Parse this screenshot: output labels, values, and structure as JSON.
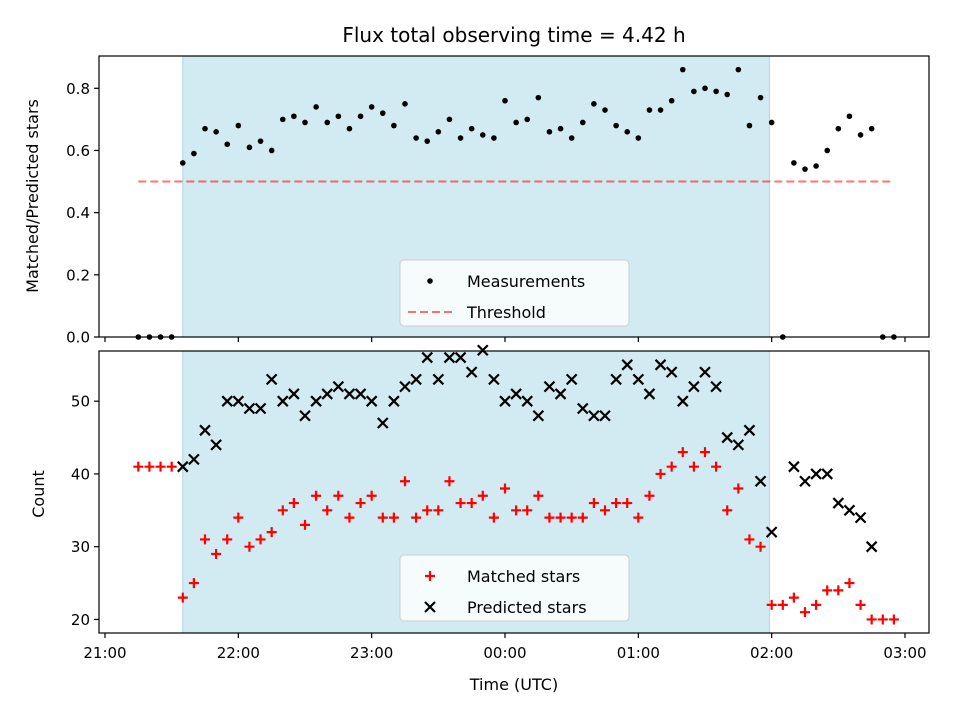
{
  "chart_data": [
    {
      "type": "scatter",
      "title": "Flux total observing time = 4.42 h",
      "xlabel": "",
      "ylabel": "Matched/Predicted stars",
      "xlim": [
        "21:00",
        "03:00"
      ],
      "ylim": [
        0,
        0.9
      ],
      "yticks": [
        0.0,
        0.2,
        0.4,
        0.6,
        0.8
      ],
      "ytick_labels": [
        "0.0",
        "0.2",
        "0.4",
        "0.6",
        "0.8"
      ],
      "grid": false,
      "legend_position": "bottom-center",
      "shaded_span": {
        "start": "21:35",
        "end": "01:59",
        "color": "#add8e6"
      },
      "threshold": {
        "name": "Threshold",
        "value": 0.5,
        "x_start": "21:15",
        "x_end": "02:55",
        "color": "#ff0000",
        "style": "dashed"
      },
      "series": [
        {
          "name": "Measurements",
          "color": "#000000",
          "marker": "dot",
          "x": [
            "21:15",
            "21:20",
            "21:25",
            "21:30",
            "21:35",
            "21:40",
            "21:45",
            "21:50",
            "21:55",
            "22:00",
            "22:05",
            "22:10",
            "22:15",
            "22:20",
            "22:25",
            "22:30",
            "22:35",
            "22:40",
            "22:45",
            "22:50",
            "22:55",
            "23:00",
            "23:05",
            "23:10",
            "23:15",
            "23:20",
            "23:25",
            "23:30",
            "23:35",
            "23:40",
            "23:45",
            "23:50",
            "23:55",
            "00:00",
            "00:05",
            "00:10",
            "00:15",
            "00:20",
            "00:25",
            "00:30",
            "00:35",
            "00:40",
            "00:45",
            "00:50",
            "00:55",
            "01:00",
            "01:05",
            "01:10",
            "01:15",
            "01:20",
            "01:25",
            "01:30",
            "01:35",
            "01:40",
            "01:45",
            "01:50",
            "01:55",
            "02:00",
            "02:05",
            "02:10",
            "02:15",
            "02:20",
            "02:25",
            "02:30",
            "02:35",
            "02:40",
            "02:45",
            "02:50",
            "02:55"
          ],
          "y": [
            0.0,
            0.0,
            0.0,
            0.0,
            0.56,
            0.59,
            0.67,
            0.66,
            0.62,
            0.68,
            0.61,
            0.63,
            0.6,
            0.7,
            0.71,
            0.69,
            0.74,
            0.69,
            0.71,
            0.67,
            0.71,
            0.74,
            0.72,
            0.68,
            0.75,
            0.64,
            0.63,
            0.66,
            0.7,
            0.64,
            0.67,
            0.65,
            0.64,
            0.76,
            0.69,
            0.7,
            0.77,
            0.66,
            0.67,
            0.64,
            0.69,
            0.75,
            0.73,
            0.68,
            0.66,
            0.64,
            0.73,
            0.73,
            0.76,
            0.86,
            0.79,
            0.8,
            0.79,
            0.78,
            0.86,
            0.68,
            0.77,
            0.69,
            0.0,
            0.56,
            0.54,
            0.55,
            0.6,
            0.67,
            0.71,
            0.65,
            0.67,
            0.0,
            0.0
          ]
        }
      ]
    },
    {
      "type": "scatter",
      "title": "",
      "xlabel": "Time (UTC)",
      "ylabel": "Count",
      "xlim": [
        "21:00",
        "03:00"
      ],
      "ylim": [
        18,
        58
      ],
      "xtick_labels": [
        "21:00",
        "22:00",
        "23:00",
        "00:00",
        "01:00",
        "02:00",
        "03:00"
      ],
      "yticks": [
        20,
        30,
        40,
        50
      ],
      "ytick_labels": [
        "20",
        "30",
        "40",
        "50"
      ],
      "grid": false,
      "legend_position": "bottom-center",
      "shaded_span": {
        "start": "21:35",
        "end": "01:59",
        "color": "#add8e6"
      },
      "series": [
        {
          "name": "Matched stars",
          "color": "#ff0000",
          "marker": "plus",
          "x": [
            "21:15",
            "21:20",
            "21:25",
            "21:30",
            "21:35",
            "21:40",
            "21:45",
            "21:50",
            "21:55",
            "22:00",
            "22:05",
            "22:10",
            "22:15",
            "22:20",
            "22:25",
            "22:30",
            "22:35",
            "22:40",
            "22:45",
            "22:50",
            "22:55",
            "23:00",
            "23:05",
            "23:10",
            "23:15",
            "23:20",
            "23:25",
            "23:30",
            "23:35",
            "23:40",
            "23:45",
            "23:50",
            "23:55",
            "00:00",
            "00:05",
            "00:10",
            "00:15",
            "00:20",
            "00:25",
            "00:30",
            "00:35",
            "00:40",
            "00:45",
            "00:50",
            "00:55",
            "01:00",
            "01:05",
            "01:10",
            "01:15",
            "01:20",
            "01:25",
            "01:30",
            "01:35",
            "01:40",
            "01:45",
            "01:50",
            "01:55",
            "02:00",
            "02:05",
            "02:10",
            "02:15",
            "02:20",
            "02:25",
            "02:30",
            "02:35",
            "02:40",
            "02:45",
            "02:50",
            "02:55"
          ],
          "y": [
            41,
            41,
            41,
            41,
            23,
            25,
            31,
            29,
            31,
            34,
            30,
            31,
            32,
            35,
            36,
            33,
            37,
            35,
            37,
            34,
            36,
            37,
            34,
            34,
            39,
            34,
            35,
            35,
            39,
            36,
            36,
            37,
            34,
            38,
            35,
            35,
            37,
            34,
            34,
            34,
            34,
            36,
            35,
            36,
            36,
            34,
            37,
            40,
            41,
            43,
            41,
            43,
            41,
            35,
            38,
            31,
            30,
            22,
            22,
            23,
            21,
            22,
            24,
            24,
            25,
            22,
            20,
            20,
            20
          ]
        },
        {
          "name": "Predicted stars",
          "color": "#000000",
          "marker": "x",
          "x": [
            "21:35",
            "21:40",
            "21:45",
            "21:50",
            "21:55",
            "22:00",
            "22:05",
            "22:10",
            "22:15",
            "22:20",
            "22:25",
            "22:30",
            "22:35",
            "22:40",
            "22:45",
            "22:50",
            "22:55",
            "23:00",
            "23:05",
            "23:10",
            "23:15",
            "23:20",
            "23:25",
            "23:30",
            "23:35",
            "23:40",
            "23:45",
            "23:50",
            "23:55",
            "00:00",
            "00:05",
            "00:10",
            "00:15",
            "00:20",
            "00:25",
            "00:30",
            "00:35",
            "00:40",
            "00:45",
            "00:50",
            "00:55",
            "01:00",
            "01:05",
            "01:10",
            "01:15",
            "01:20",
            "01:25",
            "01:30",
            "01:35",
            "01:40",
            "01:45",
            "01:50",
            "01:55",
            "02:00",
            "02:10",
            "02:15",
            "02:20",
            "02:25",
            "02:30",
            "02:35",
            "02:40",
            "02:45"
          ],
          "y": [
            41,
            42,
            46,
            44,
            50,
            50,
            49,
            49,
            53,
            50,
            51,
            48,
            50,
            51,
            52,
            51,
            51,
            50,
            47,
            50,
            52,
            53,
            56,
            53,
            56,
            56,
            54,
            57,
            53,
            50,
            51,
            50,
            48,
            52,
            51,
            53,
            49,
            48,
            48,
            53,
            55,
            53,
            51,
            55,
            54,
            50,
            52,
            54,
            52,
            45,
            44,
            46,
            39,
            32,
            41,
            39,
            40,
            40,
            36,
            35,
            34,
            30
          ]
        }
      ]
    }
  ]
}
